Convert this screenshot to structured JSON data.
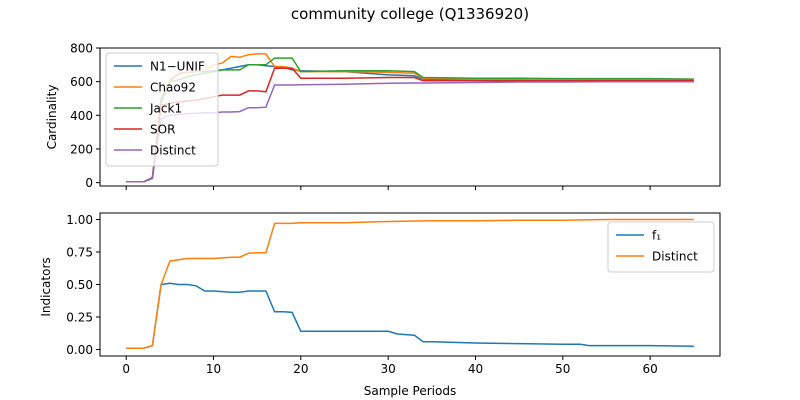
{
  "chart_data": [
    {
      "type": "line",
      "title": "community college (Q1336920)",
      "xlabel": "",
      "ylabel": "Cardinality",
      "xlim": [
        -3,
        68
      ],
      "ylim": [
        -20,
        800
      ],
      "xticks": [
        0,
        10,
        20,
        30,
        40,
        50,
        60
      ],
      "yticks": [
        0,
        200,
        400,
        600,
        800
      ],
      "legend_position": "upper-left",
      "series": [
        {
          "name": "N1−UNIF",
          "color": "#1f77b4",
          "x": [
            0,
            1,
            2,
            3,
            4,
            5,
            6,
            7,
            8,
            9,
            10,
            11,
            12,
            13,
            14,
            15,
            16,
            17,
            18,
            19,
            20,
            25,
            30,
            33,
            34,
            40,
            45,
            50,
            55,
            60,
            65
          ],
          "y": [
            5,
            5,
            5,
            25,
            470,
            600,
            650,
            655,
            660,
            660,
            665,
            670,
            680,
            690,
            700,
            700,
            695,
            690,
            685,
            670,
            665,
            660,
            640,
            635,
            615,
            610,
            610,
            610,
            610,
            610,
            610
          ]
        },
        {
          "name": "Chao92",
          "color": "#ff7f0e",
          "x": [
            0,
            1,
            2,
            3,
            4,
            5,
            6,
            7,
            8,
            9,
            10,
            11,
            12,
            13,
            14,
            15,
            16,
            17,
            18,
            19,
            20,
            25,
            30,
            33,
            34,
            40,
            45,
            50,
            55,
            60,
            65
          ],
          "y": [
            5,
            5,
            5,
            30,
            480,
            610,
            645,
            655,
            660,
            665,
            700,
            710,
            750,
            745,
            760,
            765,
            765,
            690,
            690,
            680,
            660,
            660,
            655,
            650,
            620,
            615,
            615,
            612,
            612,
            612,
            612
          ]
        },
        {
          "name": "Jack1",
          "color": "#2ca02c",
          "x": [
            0,
            1,
            2,
            3,
            4,
            5,
            6,
            7,
            8,
            9,
            10,
            11,
            12,
            13,
            14,
            15,
            16,
            17,
            18,
            19,
            20,
            25,
            30,
            33,
            34,
            40,
            45,
            50,
            55,
            60,
            65
          ],
          "y": [
            5,
            5,
            5,
            30,
            500,
            600,
            610,
            630,
            640,
            650,
            660,
            670,
            670,
            670,
            700,
            700,
            700,
            740,
            740,
            740,
            660,
            665,
            665,
            660,
            625,
            620,
            620,
            618,
            618,
            618,
            615
          ]
        },
        {
          "name": "SOR",
          "color": "#d62728",
          "x": [
            0,
            1,
            2,
            3,
            4,
            5,
            6,
            7,
            8,
            9,
            10,
            11,
            12,
            13,
            14,
            15,
            16,
            17,
            18,
            19,
            20,
            25,
            30,
            33,
            34,
            40,
            45,
            50,
            55,
            60,
            65
          ],
          "y": [
            5,
            5,
            5,
            25,
            460,
            470,
            480,
            485,
            490,
            500,
            510,
            520,
            520,
            520,
            545,
            545,
            540,
            680,
            680,
            680,
            620,
            620,
            625,
            625,
            605,
            605,
            605,
            605,
            605,
            605,
            605
          ]
        },
        {
          "name": "Distinct",
          "color": "#9467bd",
          "x": [
            0,
            1,
            2,
            3,
            4,
            5,
            6,
            7,
            8,
            9,
            10,
            11,
            12,
            13,
            14,
            15,
            16,
            17,
            18,
            19,
            20,
            25,
            30,
            33,
            34,
            40,
            45,
            50,
            55,
            60,
            65
          ],
          "y": [
            5,
            5,
            5,
            25,
            380,
            400,
            405,
            410,
            412,
            415,
            415,
            420,
            420,
            422,
            445,
            445,
            448,
            580,
            580,
            580,
            582,
            585,
            590,
            592,
            592,
            595,
            598,
            598,
            600,
            600,
            600
          ]
        }
      ]
    },
    {
      "type": "line",
      "title": "",
      "xlabel": "Sample Periods",
      "ylabel": "Indicators",
      "xlim": [
        -3,
        68
      ],
      "ylim": [
        -0.05,
        1.05
      ],
      "xticks": [
        0,
        10,
        20,
        30,
        40,
        50,
        60
      ],
      "yticks": [
        0.0,
        0.25,
        0.5,
        0.75,
        1.0
      ],
      "ytick_labels": [
        "0.00",
        "0.25",
        "0.50",
        "0.75",
        "1.00"
      ],
      "legend_position": "upper-right",
      "series": [
        {
          "name": "f₁",
          "color": "#1f77b4",
          "x": [
            0,
            1,
            2,
            3,
            4,
            5,
            6,
            7,
            8,
            9,
            10,
            11,
            12,
            13,
            14,
            15,
            16,
            17,
            18,
            19,
            20,
            25,
            30,
            31,
            32,
            33,
            34,
            35,
            40,
            45,
            50,
            52,
            53,
            55,
            60,
            65
          ],
          "y": [
            0.01,
            0.01,
            0.01,
            0.03,
            0.5,
            0.51,
            0.5,
            0.5,
            0.49,
            0.45,
            0.45,
            0.445,
            0.44,
            0.44,
            0.45,
            0.45,
            0.45,
            0.29,
            0.29,
            0.285,
            0.14,
            0.14,
            0.14,
            0.12,
            0.115,
            0.11,
            0.06,
            0.06,
            0.05,
            0.045,
            0.04,
            0.04,
            0.03,
            0.03,
            0.03,
            0.025
          ]
        },
        {
          "name": "Distinct",
          "color": "#ff7f0e",
          "x": [
            0,
            1,
            2,
            3,
            4,
            5,
            6,
            7,
            8,
            9,
            10,
            11,
            12,
            13,
            14,
            15,
            16,
            17,
            18,
            19,
            20,
            25,
            30,
            35,
            40,
            45,
            50,
            55,
            60,
            65
          ],
          "y": [
            0.01,
            0.01,
            0.01,
            0.03,
            0.5,
            0.68,
            0.69,
            0.7,
            0.7,
            0.7,
            0.7,
            0.705,
            0.71,
            0.71,
            0.74,
            0.745,
            0.745,
            0.97,
            0.97,
            0.97,
            0.975,
            0.975,
            0.985,
            0.99,
            0.99,
            0.995,
            0.995,
            1.0,
            1.0,
            1.0
          ]
        }
      ]
    }
  ]
}
